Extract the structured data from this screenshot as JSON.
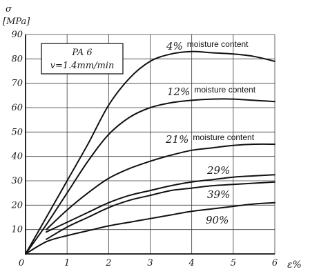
{
  "chart_data": {
    "type": "line",
    "ylabel_symbol": "σ",
    "ylabel_unit": "[MPa]",
    "xlabel": "ε%",
    "xlim": [
      0,
      6
    ],
    "ylim": [
      0,
      90
    ],
    "x_ticks": [
      "0",
      "1",
      "2",
      "3",
      "4",
      "5",
      "6"
    ],
    "y_ticks": [
      "10",
      "20",
      "30",
      "40",
      "50",
      "60",
      "70",
      "80",
      "90"
    ],
    "grid": true,
    "box_lines": [
      "PA 6",
      "v=1.4mm/min"
    ],
    "series": [
      {
        "name": "4% moisture content",
        "label": "4%",
        "suffix": "moisture content",
        "points": [
          [
            0,
            0
          ],
          [
            0.5,
            15
          ],
          [
            1,
            30
          ],
          [
            1.5,
            45
          ],
          [
            2,
            61
          ],
          [
            2.5,
            72
          ],
          [
            3,
            79
          ],
          [
            3.5,
            82
          ],
          [
            4,
            83
          ],
          [
            4.5,
            82.5
          ],
          [
            5,
            82
          ],
          [
            5.5,
            81
          ],
          [
            6,
            79
          ]
        ]
      },
      {
        "name": "12% moisture content",
        "label": "12%",
        "suffix": "moisture content",
        "points": [
          [
            0,
            0
          ],
          [
            0.5,
            12
          ],
          [
            1,
            25
          ],
          [
            1.5,
            38
          ],
          [
            2,
            49
          ],
          [
            2.5,
            56
          ],
          [
            3,
            60
          ],
          [
            3.5,
            62
          ],
          [
            4,
            63
          ],
          [
            4.5,
            63.5
          ],
          [
            5,
            63.5
          ],
          [
            5.5,
            63
          ],
          [
            6,
            62.5
          ]
        ]
      },
      {
        "name": "21% moisture content",
        "label": "21%",
        "suffix": "moisture content",
        "points": [
          [
            0.5,
            10
          ],
          [
            1,
            18
          ],
          [
            1.5,
            25
          ],
          [
            2,
            31
          ],
          [
            2.5,
            35
          ],
          [
            3,
            38
          ],
          [
            3.5,
            40.5
          ],
          [
            4,
            42.5
          ],
          [
            4.5,
            43.5
          ],
          [
            5,
            44.5
          ],
          [
            5.5,
            45
          ],
          [
            6,
            45
          ]
        ]
      },
      {
        "name": "29%",
        "label": "29%",
        "suffix": "",
        "points": [
          [
            0.5,
            9
          ],
          [
            1,
            13
          ],
          [
            1.5,
            17
          ],
          [
            2,
            21
          ],
          [
            2.5,
            24
          ],
          [
            3,
            26
          ],
          [
            3.5,
            28
          ],
          [
            4,
            29.5
          ],
          [
            4.5,
            30.5
          ],
          [
            5,
            31.5
          ],
          [
            5.5,
            32
          ],
          [
            6,
            32.5
          ]
        ]
      },
      {
        "name": "39%",
        "label": "39%",
        "suffix": "",
        "points": [
          [
            0.5,
            6
          ],
          [
            1,
            11
          ],
          [
            1.5,
            15
          ],
          [
            2,
            19
          ],
          [
            2.5,
            22
          ],
          [
            3,
            24
          ],
          [
            3.5,
            26
          ],
          [
            4,
            27
          ],
          [
            4.5,
            28
          ],
          [
            5,
            28.5
          ],
          [
            5.5,
            29
          ],
          [
            6,
            29.5
          ]
        ]
      },
      {
        "name": "90%",
        "label": "90%",
        "suffix": "",
        "points": [
          [
            0,
            0
          ],
          [
            0.5,
            5
          ],
          [
            1,
            7.5
          ],
          [
            1.5,
            9.5
          ],
          [
            2,
            11.5
          ],
          [
            2.5,
            13
          ],
          [
            3,
            14.5
          ],
          [
            3.5,
            16
          ],
          [
            4,
            17.5
          ],
          [
            4.5,
            18.5
          ],
          [
            5,
            19.5
          ],
          [
            5.5,
            20.5
          ],
          [
            6,
            21
          ]
        ]
      }
    ]
  }
}
